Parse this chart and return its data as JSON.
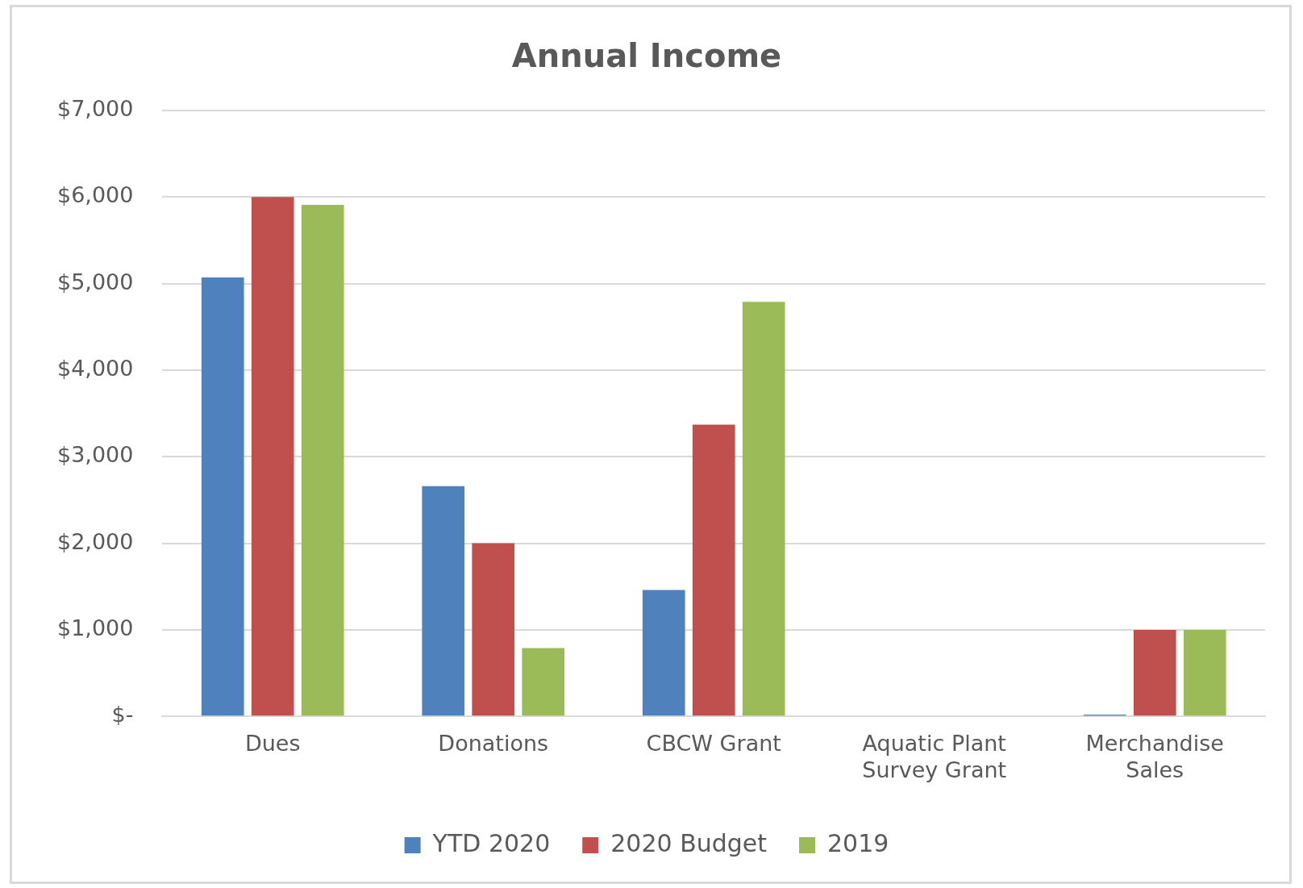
{
  "chart_data": {
    "type": "bar",
    "title": "Annual Income",
    "categories": [
      "Dues",
      "Donations",
      "CBCW Grant",
      "Aquatic Plant Survey Grant",
      "Merchandise Sales"
    ],
    "series": [
      {
        "name": "YTD 2020",
        "color": "#4f81bd",
        "values": [
          5070,
          2660,
          1460,
          0,
          20
        ]
      },
      {
        "name": "2020 Budget",
        "color": "#c0504d",
        "values": [
          6000,
          2000,
          3370,
          0,
          1000
        ]
      },
      {
        "name": "2019",
        "color": "#9bbb59",
        "values": [
          5910,
          790,
          4790,
          0,
          1000
        ]
      }
    ],
    "ylim": [
      0,
      7000
    ],
    "yticks": [
      {
        "value": 0,
        "label": "$-"
      },
      {
        "value": 1000,
        "label": "$1,000"
      },
      {
        "value": 2000,
        "label": "$2,000"
      },
      {
        "value": 3000,
        "label": "$3,000"
      },
      {
        "value": 4000,
        "label": "$4,000"
      },
      {
        "value": 5000,
        "label": "$5,000"
      },
      {
        "value": 6000,
        "label": "$6,000"
      },
      {
        "value": 7000,
        "label": "$7,000"
      }
    ],
    "grid": "y",
    "legend": "bottom"
  }
}
